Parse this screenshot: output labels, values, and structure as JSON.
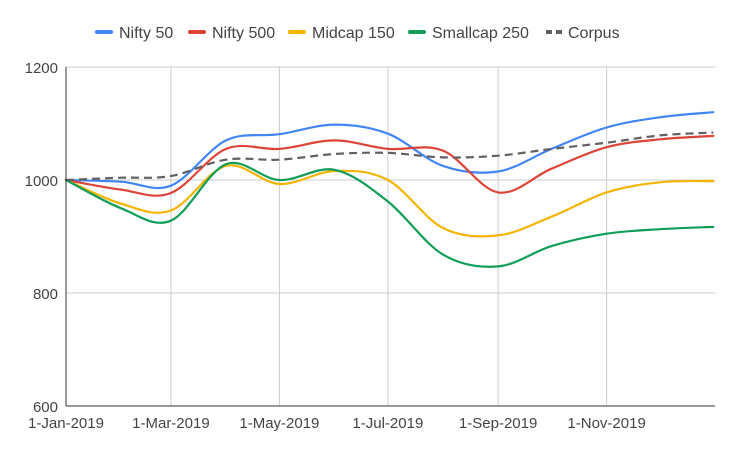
{
  "chart_data": {
    "type": "line",
    "title": "",
    "xlabel": "",
    "ylabel": "",
    "ylim": [
      600,
      1200
    ],
    "yticks": [
      600,
      800,
      1000,
      1200
    ],
    "grid": true,
    "legend_position": "top",
    "xtick_labels": [
      "1-Jan-2019",
      "1-Mar-2019",
      "1-May-2019",
      "1-Jul-2019",
      "1-Sep-2019",
      "1-Nov-2019"
    ],
    "x": [
      "1-Jan-2019",
      "1-Feb-2019",
      "1-Mar-2019",
      "1-Apr-2019",
      "1-May-2019",
      "1-Jun-2019",
      "1-Jul-2019",
      "1-Aug-2019",
      "1-Sep-2019",
      "1-Oct-2019",
      "1-Nov-2019",
      "1-Dec-2019",
      "31-Dec-2019"
    ],
    "series": [
      {
        "name": "Nifty 50",
        "color": "#4285F4",
        "dash": false,
        "values": [
          1000,
          997,
          990,
          1070,
          1081,
          1098,
          1082,
          1025,
          1015,
          1055,
          1093,
          1111,
          1120
        ]
      },
      {
        "name": "Nifty 500",
        "color": "#DB4437",
        "dash": false,
        "values": [
          1000,
          983,
          977,
          1055,
          1055,
          1070,
          1055,
          1052,
          978,
          1020,
          1058,
          1072,
          1078
        ]
      },
      {
        "name": "Midcap 150",
        "color": "#F4B400",
        "dash": false,
        "values": [
          1000,
          958,
          946,
          1025,
          993,
          1016,
          1000,
          915,
          902,
          935,
          978,
          996,
          998
        ]
      },
      {
        "name": "Smallcap 250",
        "color": "#0F9D58",
        "dash": false,
        "values": [
          1000,
          950,
          928,
          1028,
          1000,
          1018,
          962,
          868,
          847,
          883,
          905,
          913,
          917
        ]
      },
      {
        "name": "Corpus",
        "color": "#616161",
        "dash": true,
        "values": [
          1000,
          1004,
          1007,
          1036,
          1036,
          1046,
          1048,
          1040,
          1043,
          1055,
          1066,
          1079,
          1084
        ]
      }
    ]
  }
}
